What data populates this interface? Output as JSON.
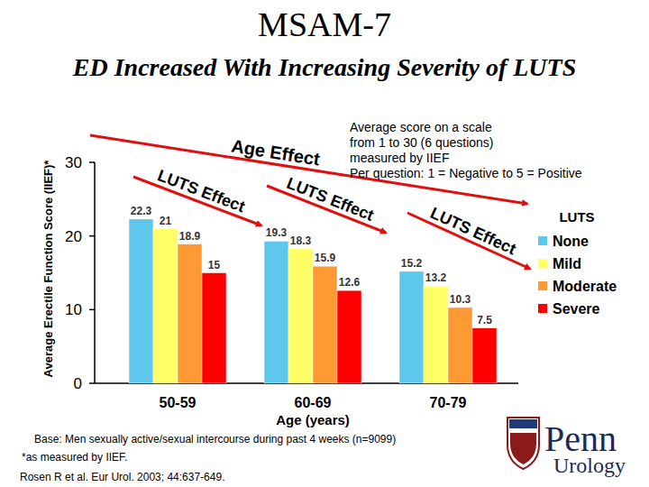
{
  "chart_data": {
    "type": "bar",
    "title": "MSAM-7",
    "subtitle": "ED Increased With Increasing Severity of LUTS",
    "y_label": "Average Erectile Function Score (IIEF)*",
    "x_label": "Age (years)",
    "categories": [
      "50-59",
      "60-69",
      "70-79"
    ],
    "series": [
      {
        "name": "None",
        "color": "#5ec8ec",
        "values": [
          22.3,
          19.3,
          15.2
        ]
      },
      {
        "name": "Mild",
        "color": "#ffff66",
        "values": [
          21.0,
          18.3,
          13.2
        ]
      },
      {
        "name": "Moderate",
        "color": "#ff9933",
        "values": [
          18.9,
          15.9,
          10.3
        ]
      },
      {
        "name": "Severe",
        "color": "#ff0000",
        "values": [
          15.0,
          12.6,
          7.5
        ]
      }
    ],
    "ylim": [
      0,
      30
    ],
    "yticks": [
      0,
      10,
      20,
      30
    ],
    "data_labels": true,
    "legend": "right",
    "legend_title": "LUTS",
    "annotations": [
      "Age Effect",
      "LUTS Effect",
      "LUTS Effect",
      "LUTS Effect"
    ],
    "note": [
      "Average score on a scale",
      "from 1 to 30 (6 questions)",
      "measured by IIEF",
      "Per question: 1 = Negative to 5 = Positive"
    ],
    "footnotes": [
      "Base: Men sexually active/sexual intercourse during past 4 weeks (n=9099)",
      "*as measured by IIEF.",
      "Rosen R et al. Eur Urol. 2003; 44:637-649."
    ],
    "logo": [
      "Penn",
      "Urology"
    ]
  }
}
